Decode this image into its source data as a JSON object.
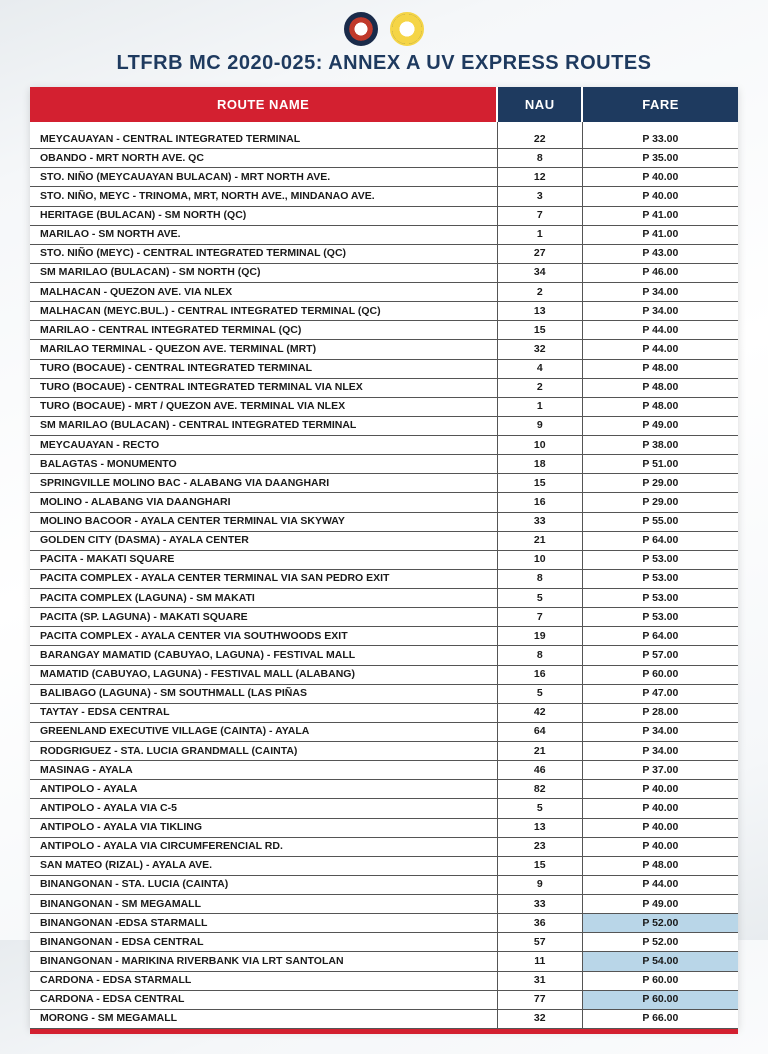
{
  "title": "LTFRB MC 2020-025: ANNEX A UV EXPRESS ROUTES",
  "headers": {
    "route": "ROUTE NAME",
    "nau": "NAU",
    "fare": "FARE"
  },
  "colors": {
    "header_route_bg": "#d32030",
    "header_nau_bg": "#1e3a5f",
    "header_fare_bg": "#1e3a5f",
    "title_color": "#1e3a5f",
    "highlight_bg": "#b9d6e8",
    "border_color": "#555555",
    "page_bg_start": "#e8ecef",
    "page_bg_end": "#ffffff"
  },
  "table": {
    "col_widths_pct": [
      66,
      12,
      22
    ],
    "font_size_pt": 10.5,
    "header_font_size_pt": 13
  },
  "rows": [
    {
      "route": "MEYCAUAYAN - CENTRAL INTEGRATED TERMINAL",
      "nau": "22",
      "fare": "P 33.00"
    },
    {
      "route": "OBANDO - MRT NORTH AVE. QC",
      "nau": "8",
      "fare": "P 35.00"
    },
    {
      "route": "STO. NIÑO (MEYCAUAYAN BULACAN) - MRT NORTH AVE.",
      "nau": "12",
      "fare": "P 40.00"
    },
    {
      "route": "STO. NIÑO, MEYC - TRINOMA, MRT, NORTH AVE., MINDANAO AVE.",
      "nau": "3",
      "fare": "P 40.00"
    },
    {
      "route": "HERITAGE (BULACAN) - SM NORTH (QC)",
      "nau": "7",
      "fare": "P 41.00"
    },
    {
      "route": "MARILAO - SM NORTH AVE.",
      "nau": "1",
      "fare": "P 41.00"
    },
    {
      "route": "STO. NIÑO (MEYC) - CENTRAL INTEGRATED TERMINAL (QC)",
      "nau": "27",
      "fare": "P 43.00"
    },
    {
      "route": "SM MARILAO (BULACAN) - SM NORTH (QC)",
      "nau": "34",
      "fare": "P 46.00"
    },
    {
      "route": "MALHACAN - QUEZON AVE. VIA NLEX",
      "nau": "2",
      "fare": "P 34.00"
    },
    {
      "route": "MALHACAN (MEYC.BUL.) - CENTRAL INTEGRATED TERMINAL (QC)",
      "nau": "13",
      "fare": "P 34.00"
    },
    {
      "route": "MARILAO - CENTRAL INTEGRATED TERMINAL (QC)",
      "nau": "15",
      "fare": "P 44.00"
    },
    {
      "route": "MARILAO TERMINAL - QUEZON AVE. TERMINAL (MRT)",
      "nau": "32",
      "fare": "P 44.00"
    },
    {
      "route": "TURO (BOCAUE) - CENTRAL INTEGRATED TERMINAL",
      "nau": "4",
      "fare": "P 48.00"
    },
    {
      "route": "TURO (BOCAUE) - CENTRAL INTEGRATED TERMINAL VIA NLEX",
      "nau": "2",
      "fare": "P 48.00"
    },
    {
      "route": "TURO (BOCAUE) - MRT / QUEZON AVE. TERMINAL VIA NLEX",
      "nau": "1",
      "fare": "P 48.00"
    },
    {
      "route": "SM MARILAO (BULACAN) - CENTRAL INTEGRATED TERMINAL",
      "nau": "9",
      "fare": "P 49.00"
    },
    {
      "route": "MEYCAUAYAN - RECTO",
      "nau": "10",
      "fare": "P 38.00"
    },
    {
      "route": "BALAGTAS - MONUMENTO",
      "nau": "18",
      "fare": "P 51.00"
    },
    {
      "route": "SPRINGVILLE MOLINO BAC - ALABANG VIA DAANGHARI",
      "nau": "15",
      "fare": "P 29.00"
    },
    {
      "route": "MOLINO - ALABANG VIA DAANGHARI",
      "nau": "16",
      "fare": "P 29.00"
    },
    {
      "route": "MOLINO BACOOR - AYALA CENTER TERMINAL VIA SKYWAY",
      "nau": "33",
      "fare": "P 55.00"
    },
    {
      "route": "GOLDEN CITY (DASMA) - AYALA CENTER",
      "nau": "21",
      "fare": "P 64.00"
    },
    {
      "route": "PACITA - MAKATI SQUARE",
      "nau": "10",
      "fare": "P 53.00"
    },
    {
      "route": "PACITA COMPLEX - AYALA CENTER TERMINAL VIA SAN PEDRO EXIT",
      "nau": "8",
      "fare": "P 53.00"
    },
    {
      "route": "PACITA COMPLEX (LAGUNA) - SM MAKATI",
      "nau": "5",
      "fare": "P 53.00"
    },
    {
      "route": "PACITA (SP. LAGUNA) - MAKATI SQUARE",
      "nau": "7",
      "fare": "P 53.00"
    },
    {
      "route": "PACITA COMPLEX - AYALA CENTER VIA SOUTHWOODS EXIT",
      "nau": "19",
      "fare": "P 64.00"
    },
    {
      "route": "BARANGAY MAMATID (CABUYAO, LAGUNA) - FESTIVAL MALL",
      "nau": "8",
      "fare": "P 57.00"
    },
    {
      "route": "MAMATID (CABUYAO, LAGUNA) - FESTIVAL MALL (ALABANG)",
      "nau": "16",
      "fare": "P 60.00"
    },
    {
      "route": "BALIBAGO (LAGUNA) - SM SOUTHMALL (LAS PIÑAS",
      "nau": "5",
      "fare": "P 47.00"
    },
    {
      "route": "TAYTAY - EDSA CENTRAL",
      "nau": "42",
      "fare": "P 28.00"
    },
    {
      "route": "GREENLAND EXECUTIVE VILLAGE (CAINTA) - AYALA",
      "nau": "64",
      "fare": "P 34.00"
    },
    {
      "route": "RODGRIGUEZ - STA. LUCIA GRANDMALL (CAINTA)",
      "nau": "21",
      "fare": "P 34.00"
    },
    {
      "route": "MASINAG - AYALA",
      "nau": "46",
      "fare": "P 37.00"
    },
    {
      "route": "ANTIPOLO - AYALA",
      "nau": "82",
      "fare": "P 40.00"
    },
    {
      "route": "ANTIPOLO - AYALA VIA C-5",
      "nau": "5",
      "fare": "P 40.00"
    },
    {
      "route": "ANTIPOLO - AYALA VIA TIKLING",
      "nau": "13",
      "fare": "P 40.00"
    },
    {
      "route": "ANTIPOLO - AYALA VIA CIRCUMFERENCIAL RD.",
      "nau": "23",
      "fare": "P 40.00"
    },
    {
      "route": "SAN MATEO (RIZAL) - AYALA AVE.",
      "nau": "15",
      "fare": "P 48.00"
    },
    {
      "route": "BINANGONAN - STA. LUCIA (CAINTA)",
      "nau": "9",
      "fare": "P 44.00"
    },
    {
      "route": "BINANGONAN - SM MEGAMALL",
      "nau": "33",
      "fare": "P 49.00"
    },
    {
      "route": "BINANGONAN -EDSA STARMALL",
      "nau": "36",
      "fare": "P 52.00",
      "hl": true
    },
    {
      "route": "BINANGONAN - EDSA CENTRAL",
      "nau": "57",
      "fare": "P 52.00"
    },
    {
      "route": "BINANGONAN - MARIKINA RIVERBANK VIA LRT SANTOLAN",
      "nau": "11",
      "fare": "P 54.00",
      "hl": true
    },
    {
      "route": "CARDONA - EDSA STARMALL",
      "nau": "31",
      "fare": "P 60.00"
    },
    {
      "route": "CARDONA - EDSA CENTRAL",
      "nau": "77",
      "fare": "P 60.00",
      "hl": true
    },
    {
      "route": "MORONG - SM MEGAMALL",
      "nau": "32",
      "fare": "P 66.00"
    }
  ]
}
